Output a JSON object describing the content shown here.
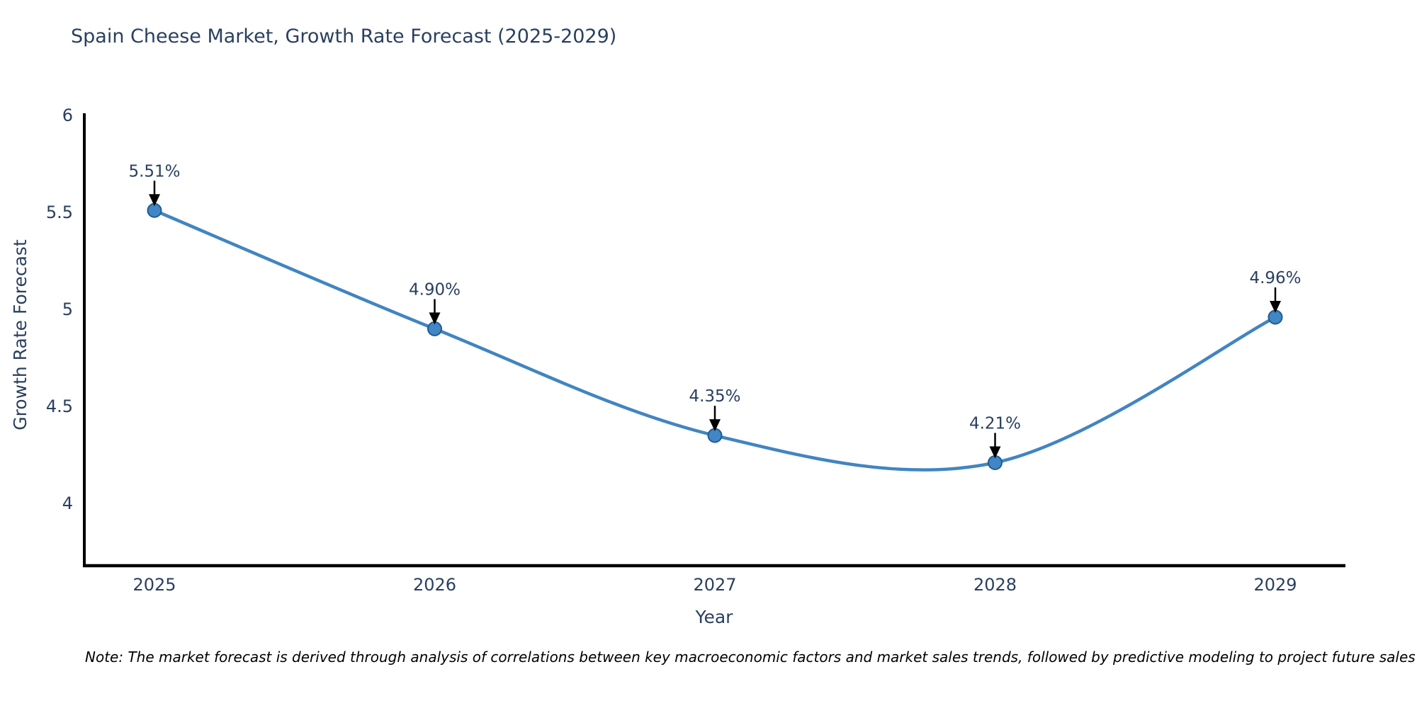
{
  "title": "Spain Cheese Market, Growth Rate Forecast (2025-2029)",
  "note": "Note: The market forecast is derived through analysis of correlations between key macroeconomic factors and market sales trends, followed by predictive modeling to project future sales",
  "chart_data": {
    "type": "line",
    "line_shape": "spline",
    "title": "Spain Cheese Market, Growth Rate Forecast (2025-2029)",
    "xlabel": "Year",
    "ylabel": "Growth Rate Forecast",
    "categories": [
      "2025",
      "2026",
      "2027",
      "2028",
      "2029"
    ],
    "values": [
      5.51,
      4.9,
      4.35,
      4.21,
      4.96
    ],
    "point_labels": [
      "5.51%",
      "4.90%",
      "4.35%",
      "4.21%",
      "4.96%"
    ],
    "ytick_values": [
      6,
      5.5,
      5,
      4.5,
      4
    ],
    "ytick_labels": [
      "6",
      "5.5",
      "5",
      "4.5",
      "4"
    ],
    "ylim": [
      3.675,
      6.01
    ],
    "grid": false,
    "legend": "none",
    "annotations_have_arrows": true,
    "colors": {
      "line": "#4185c0",
      "marker_fill": "#4186c5",
      "marker_edge": "#205d8f",
      "axis": "#000000",
      "text": "#2a3f5f",
      "annotation_arrow": "#000000",
      "note_text": "#000000",
      "background": "#ffffff"
    }
  }
}
